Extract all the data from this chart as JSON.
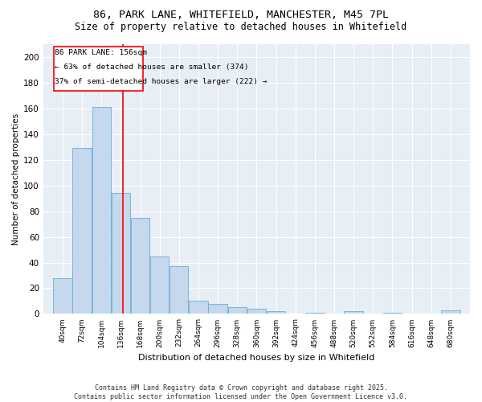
{
  "title_line1": "86, PARK LANE, WHITEFIELD, MANCHESTER, M45 7PL",
  "title_line2": "Size of property relative to detached houses in Whitefield",
  "xlabel": "Distribution of detached houses by size in Whitefield",
  "ylabel": "Number of detached properties",
  "bar_color": "#c5d8ed",
  "bar_edge_color": "#6aaed6",
  "vline_x": 156,
  "vline_color": "red",
  "annotation_title": "86 PARK LANE: 156sqm",
  "annotation_line1": "← 63% of detached houses are smaller (374)",
  "annotation_line2": "37% of semi-detached houses are larger (222) →",
  "categories": [
    "40sqm",
    "72sqm",
    "104sqm",
    "136sqm",
    "168sqm",
    "200sqm",
    "232sqm",
    "264sqm",
    "296sqm",
    "328sqm",
    "360sqm",
    "392sqm",
    "424sqm",
    "456sqm",
    "488sqm",
    "520sqm",
    "552sqm",
    "584sqm",
    "616sqm",
    "648sqm",
    "680sqm"
  ],
  "bin_edges": [
    40,
    72,
    104,
    136,
    168,
    200,
    232,
    264,
    296,
    328,
    360,
    392,
    424,
    456,
    488,
    520,
    552,
    584,
    616,
    648,
    680,
    712
  ],
  "values": [
    28,
    129,
    161,
    94,
    75,
    45,
    37,
    10,
    8,
    5,
    4,
    2,
    0,
    1,
    0,
    2,
    0,
    1,
    0,
    0,
    3
  ],
  "ylim": [
    0,
    210
  ],
  "yticks": [
    0,
    20,
    40,
    60,
    80,
    100,
    120,
    140,
    160,
    180,
    200
  ],
  "background_color": "#e8eef5",
  "footer_line1": "Contains HM Land Registry data © Crown copyright and database right 2025.",
  "footer_line2": "Contains public sector information licensed under the Open Government Licence v3.0."
}
